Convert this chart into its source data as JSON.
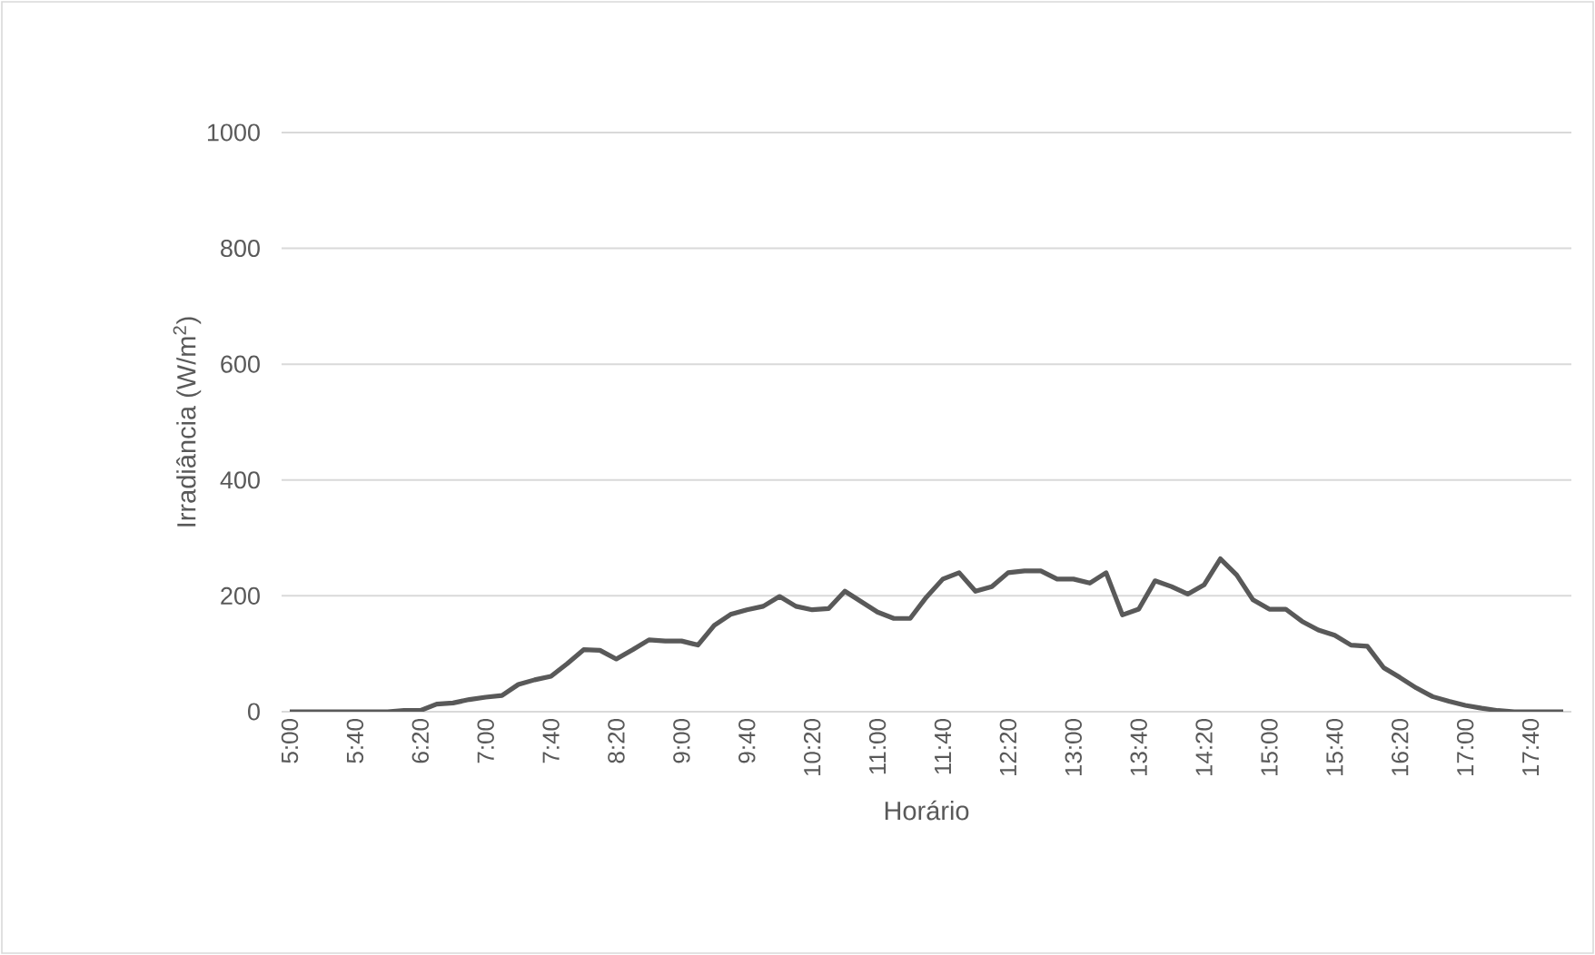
{
  "chart_data": {
    "type": "line",
    "xlabel": "Horário",
    "ylabel": "Irradiância (W/m$^{2}$)",
    "categories": [
      "5:00",
      null,
      null,
      null,
      "5:40",
      null,
      null,
      null,
      "6:20",
      null,
      null,
      null,
      "7:00",
      null,
      null,
      null,
      "7:40",
      null,
      null,
      null,
      "8:20",
      null,
      null,
      null,
      "9:00",
      null,
      null,
      null,
      "9:40",
      null,
      null,
      null,
      "10:20",
      null,
      null,
      null,
      "11:00",
      null,
      null,
      null,
      "11:40",
      null,
      null,
      null,
      "12:20",
      null,
      null,
      null,
      "13:00",
      null,
      null,
      null,
      "13:40",
      null,
      null,
      null,
      "14:20",
      null,
      null,
      null,
      "15:00",
      null,
      null,
      null,
      "15:40",
      null,
      null,
      null,
      "16:20",
      null,
      null,
      null,
      "17:00",
      null,
      null,
      null,
      "17:40",
      null,
      null
    ],
    "series": [
      {
        "color": "#595959",
        "values": [
          0,
          0,
          0,
          0,
          0,
          0,
          0,
          2,
          2,
          13,
          15,
          21,
          25,
          28,
          47,
          55,
          61,
          83,
          107,
          106,
          91,
          107,
          124,
          122,
          122,
          115,
          149,
          168,
          176,
          182,
          199,
          182,
          176,
          178,
          208,
          190,
          172,
          161,
          161,
          198,
          229,
          240,
          208,
          216,
          240,
          243,
          243,
          229,
          229,
          222,
          240,
          167,
          177,
          226,
          216,
          203,
          219,
          264,
          236,
          193,
          177,
          177,
          156,
          141,
          132,
          115,
          113,
          76,
          59,
          41,
          26,
          18,
          11,
          6,
          2,
          0,
          0,
          0,
          0
        ]
      }
    ],
    "ylim": [
      0,
      1000
    ],
    "yticks": [
      0,
      200,
      400,
      600,
      800,
      1000
    ],
    "grid": "y",
    "marker": "none",
    "line_style": "solid"
  }
}
